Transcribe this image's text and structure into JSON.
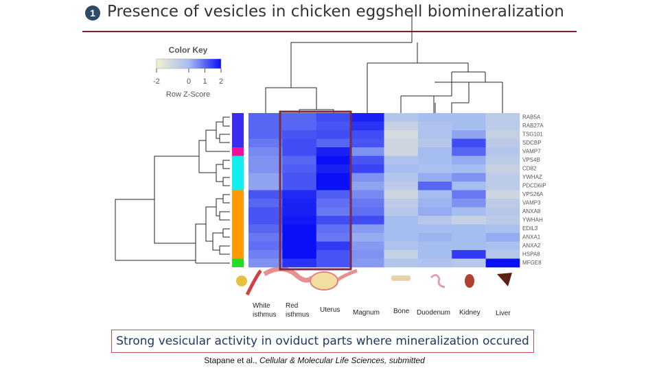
{
  "header": {
    "number": "1",
    "title": "Presence of vesicles in chicken eggshell biomineralization"
  },
  "chart_data": {
    "type": "heatmap",
    "colorkey_title": "Color Key",
    "colorkey_label": "Row Z-Score",
    "zlim": [
      -2,
      2
    ],
    "zticks": [
      -2,
      0,
      1,
      2
    ],
    "colorscale": [
      "#f4efd0",
      "#a6bdf0",
      "#0a10f6"
    ],
    "columns": [
      "White isthmus",
      "Red isthmus",
      "Uterus",
      "Magnum",
      "Bone",
      "Duodenum",
      "Kidney",
      "Liver"
    ],
    "rows": [
      "RAB5A",
      "RAB27A",
      "TSG101",
      "SDCBP",
      "VAMP7",
      "VPS4B",
      "CD82",
      "YWHAZ",
      "PDCD6IP",
      "VPS26A",
      "VAMP3",
      "ANXA8",
      "YWHAH",
      "EDIL3",
      "ANXA1",
      "ANXA2",
      "HSPA8",
      "MFGE8"
    ],
    "row_colors": [
      "#3a2df0",
      "#3a2df0",
      "#3a2df0",
      "#3a2df0",
      "#ee1199",
      "#11eeee",
      "#11eeee",
      "#11eeee",
      "#11eeee",
      "#ff9a00",
      "#ff9a00",
      "#ff9a00",
      "#ff9a00",
      "#ff9a00",
      "#ff9a00",
      "#ff9a00",
      "#ff9a00",
      "#22dd22"
    ],
    "values": [
      [
        1,
        1,
        1.3,
        1.8,
        -0.3,
        0,
        0,
        -0.5
      ],
      [
        1,
        1,
        1.2,
        1.6,
        -0.8,
        -0.2,
        0,
        -0.5
      ],
      [
        1,
        1.2,
        1.3,
        1.3,
        -1.2,
        -0.2,
        0.3,
        -0.8
      ],
      [
        0.8,
        1.3,
        1,
        1.2,
        -1,
        -0.4,
        1.3,
        -0.5
      ],
      [
        0.6,
        1.3,
        1.8,
        0.5,
        -1,
        0,
        1,
        -0.3
      ],
      [
        0.5,
        1,
        2,
        1.2,
        -0.2,
        0,
        0.2,
        -0.6
      ],
      [
        0.5,
        1.1,
        1.8,
        1.4,
        0,
        -0.1,
        0,
        -0.8
      ],
      [
        0.3,
        1.2,
        2,
        0.5,
        -0.3,
        0.2,
        0.5,
        -0.5
      ],
      [
        0.3,
        1.2,
        2.1,
        0.3,
        -0.5,
        1,
        0,
        -0.6
      ],
      [
        1.2,
        1.7,
        1.1,
        0.6,
        -1,
        0,
        0.8,
        -1
      ],
      [
        1,
        1.8,
        0.9,
        0.8,
        -0.6,
        0.1,
        0.5,
        -0.6
      ],
      [
        1.2,
        1.8,
        0.8,
        0.9,
        -0.4,
        0.2,
        0,
        -0.4
      ],
      [
        1.2,
        1.9,
        1.3,
        1.3,
        0,
        -0.4,
        -0.8,
        -0.5
      ],
      [
        1,
        2,
        0.9,
        0.4,
        0,
        0,
        0,
        -0.1
      ],
      [
        0.8,
        2,
        0.8,
        0.2,
        0,
        0.1,
        0,
        0.2
      ],
      [
        0.9,
        2,
        1.5,
        0.4,
        -0.2,
        0,
        0,
        -0.1
      ],
      [
        0.7,
        2,
        1.2,
        0.5,
        -0.8,
        0,
        1.5,
        -0.4
      ],
      [
        0.5,
        1.6,
        1.2,
        0.4,
        -0.3,
        -0.2,
        -0.4,
        2.3
      ]
    ]
  },
  "conclusion": "Strong vesicular activity in oviduct parts where mineralization occured",
  "citation": {
    "authors": "Stapane et al.,",
    "journal": "Cellular & Molecular Life Sciences,",
    "status": "submitted"
  }
}
